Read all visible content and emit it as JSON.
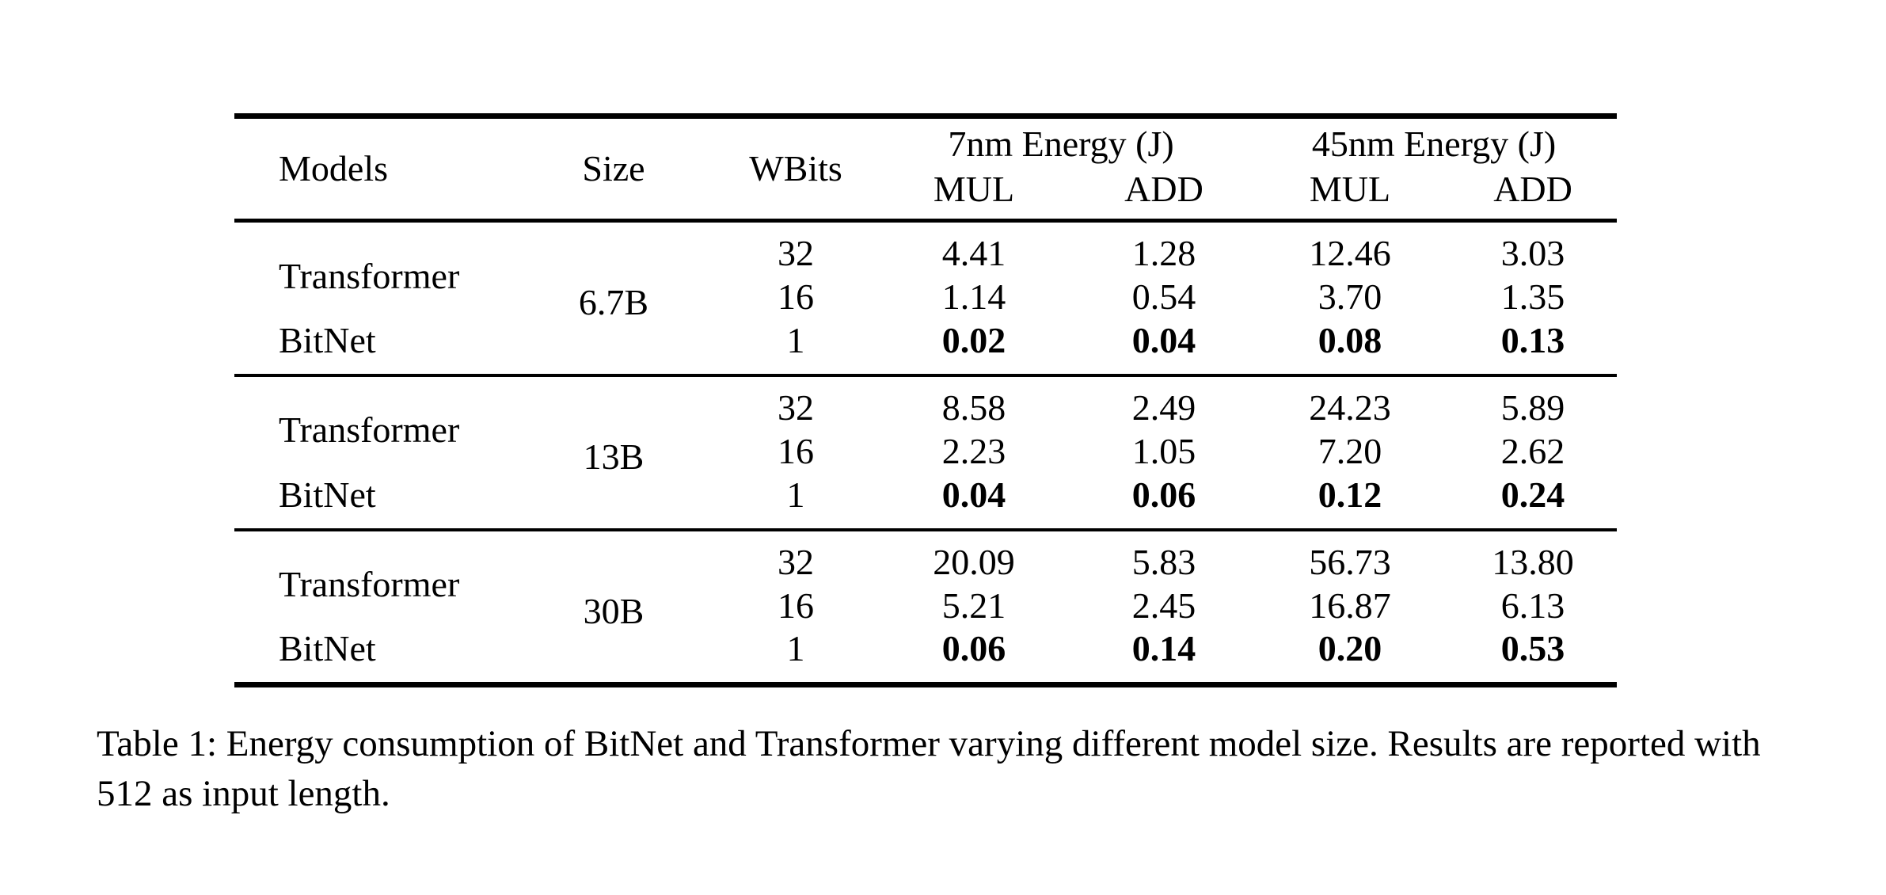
{
  "page": {
    "background_color": "#ffffff",
    "text_color": "#000000"
  },
  "table": {
    "header": {
      "models": "Models",
      "size": "Size",
      "wbits": "WBits",
      "group_7nm": "7nm Energy (J)",
      "group_45nm": "45nm Energy (J)",
      "mul_label": "MUL",
      "add_label": "ADD"
    },
    "groups": [
      {
        "size": "6.7B",
        "rows": [
          {
            "model": "Transformer",
            "wbits": "32",
            "mul7": "4.41",
            "add7": "1.28",
            "mul45": "12.46",
            "add45": "3.03",
            "bold_values": false
          },
          {
            "model": "",
            "wbits": "16",
            "mul7": "1.14",
            "add7": "0.54",
            "mul45": "3.70",
            "add45": "1.35",
            "bold_values": false
          },
          {
            "model": "BitNet",
            "wbits": "1",
            "mul7": "0.02",
            "add7": "0.04",
            "mul45": "0.08",
            "add45": "0.13",
            "bold_values": true
          }
        ]
      },
      {
        "size": "13B",
        "rows": [
          {
            "model": "Transformer",
            "wbits": "32",
            "mul7": "8.58",
            "add7": "2.49",
            "mul45": "24.23",
            "add45": "5.89",
            "bold_values": false
          },
          {
            "model": "",
            "wbits": "16",
            "mul7": "2.23",
            "add7": "1.05",
            "mul45": "7.20",
            "add45": "2.62",
            "bold_values": false
          },
          {
            "model": "BitNet",
            "wbits": "1",
            "mul7": "0.04",
            "add7": "0.06",
            "mul45": "0.12",
            "add45": "0.24",
            "bold_values": true
          }
        ]
      },
      {
        "size": "30B",
        "rows": [
          {
            "model": "Transformer",
            "wbits": "32",
            "mul7": "20.09",
            "add7": "5.83",
            "mul45": "56.73",
            "add45": "13.80",
            "bold_values": false
          },
          {
            "model": "",
            "wbits": "16",
            "mul7": "5.21",
            "add7": "2.45",
            "mul45": "16.87",
            "add45": "6.13",
            "bold_values": false
          },
          {
            "model": "BitNet",
            "wbits": "1",
            "mul7": "0.06",
            "add7": "0.14",
            "mul45": "0.20",
            "add45": "0.53",
            "bold_values": true
          }
        ]
      }
    ]
  },
  "caption": "Table 1: Energy consumption of BitNet and Transformer varying different model size. Results are reported with 512 as input length."
}
